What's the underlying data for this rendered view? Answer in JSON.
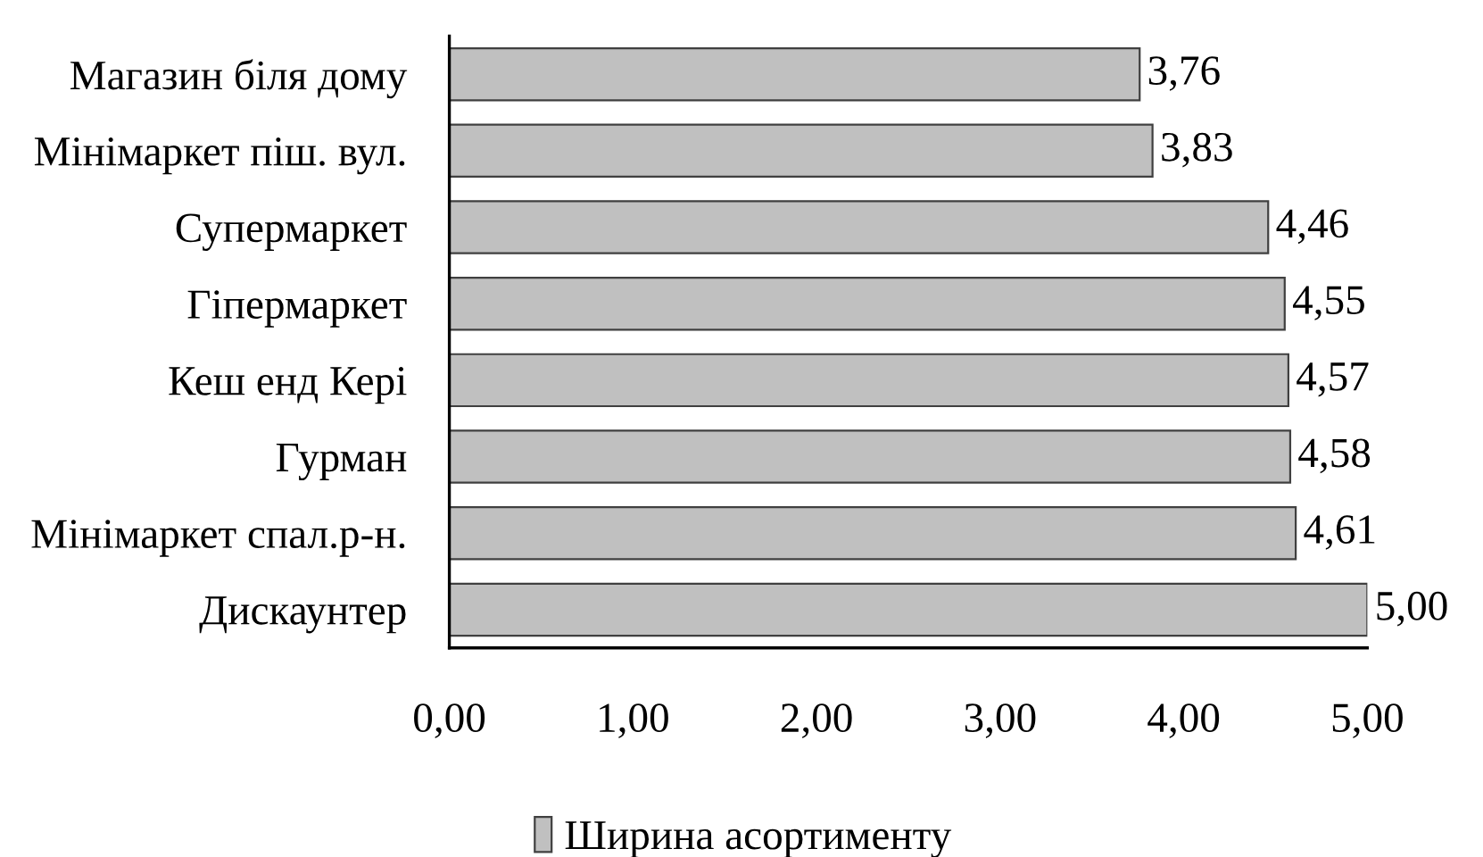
{
  "chart_data": {
    "type": "bar",
    "orientation": "horizontal",
    "categories": [
      "Магазин біля дому",
      "Мінімаркет піш. вул.",
      "Супермаркет",
      "Гіпермаркет",
      "Кеш енд Кері",
      "Гурман",
      "Мінімаркет спал.р-н.",
      "Дискаунтер"
    ],
    "series": [
      {
        "name": "Ширина асортименту",
        "color": "#c0c0c0",
        "values": [
          3.76,
          3.83,
          4.46,
          4.55,
          4.57,
          4.58,
          4.61,
          5.0
        ],
        "value_labels": [
          "3,76",
          "3,83",
          "4,46",
          "4,55",
          "4,57",
          "4,58",
          "4,61",
          "5,00"
        ]
      }
    ],
    "xlim": [
      0,
      5
    ],
    "xticks": [
      {
        "value": 0,
        "label": "0,00"
      },
      {
        "value": 1,
        "label": "1,00"
      },
      {
        "value": 2,
        "label": "2,00"
      },
      {
        "value": 3,
        "label": "3,00"
      },
      {
        "value": 4,
        "label": "4,00"
      },
      {
        "value": 5,
        "label": "5,00"
      }
    ],
    "legend": "bottom"
  }
}
